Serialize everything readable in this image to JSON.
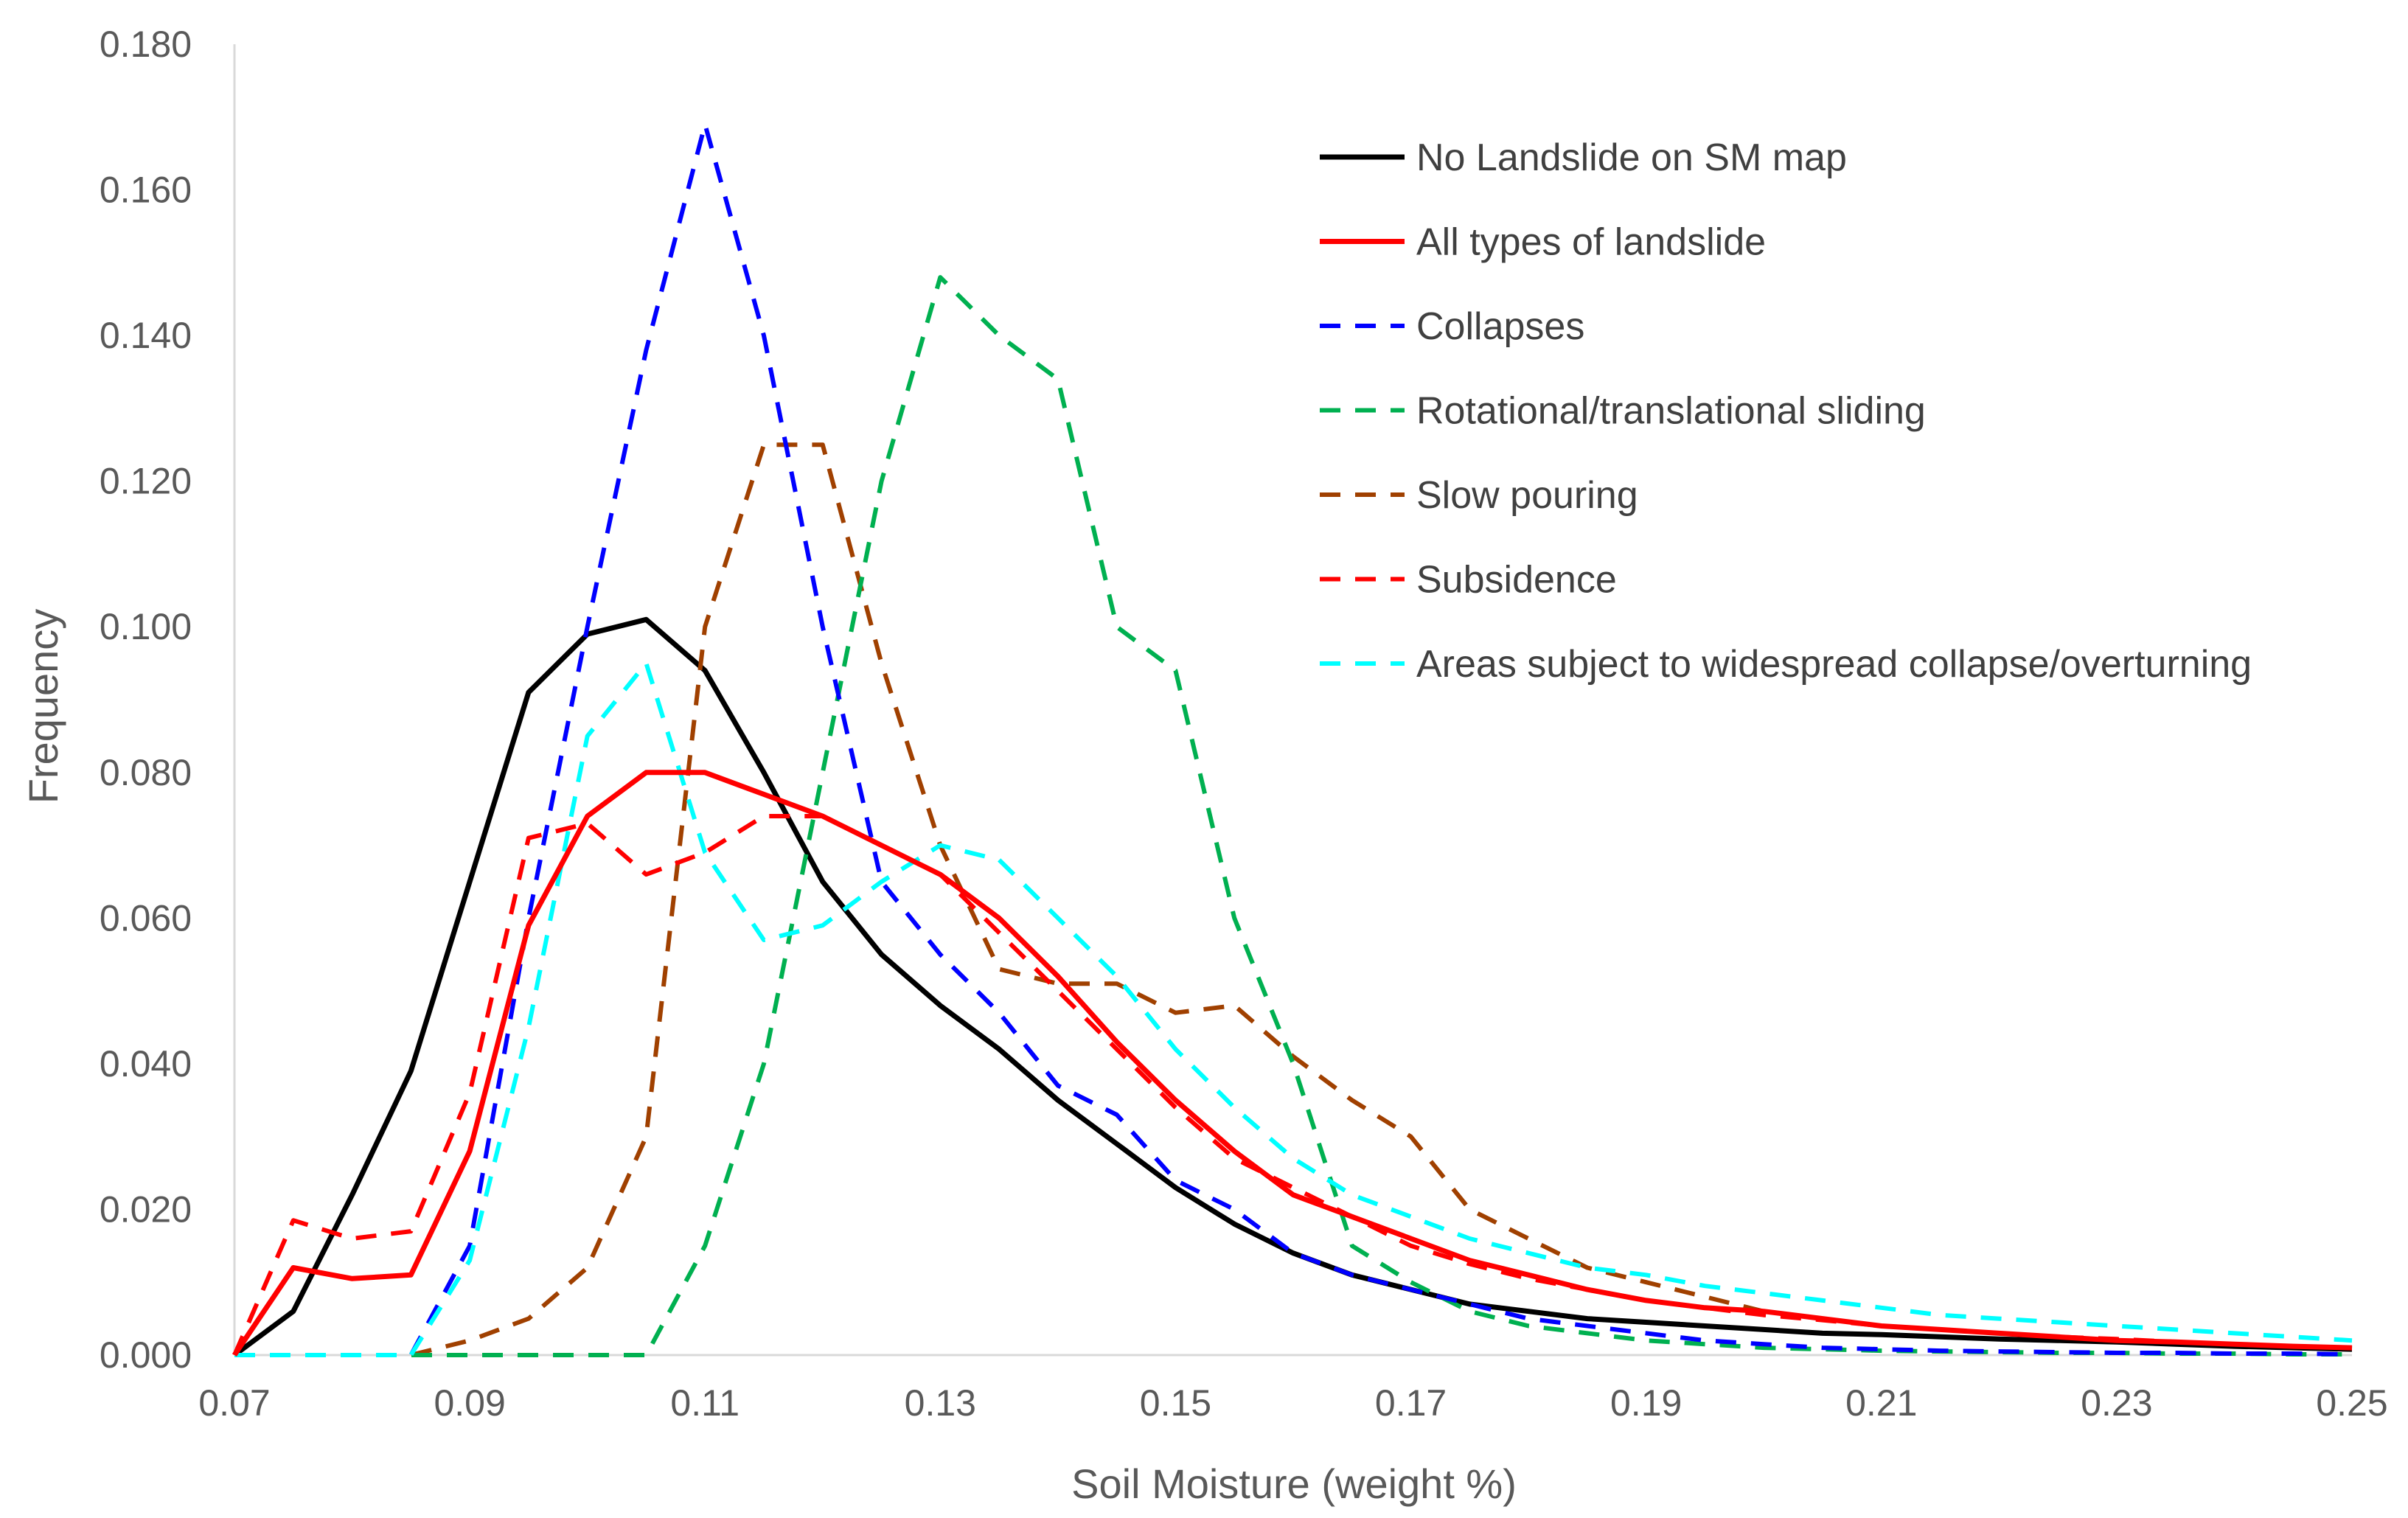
{
  "chart_data": {
    "type": "line",
    "title": "",
    "xlabel": "Soil Moisture (weight %)",
    "ylabel": "Frequency",
    "xlim": [
      0.07,
      0.25
    ],
    "ylim": [
      0,
      0.18
    ],
    "xticks": [
      "0.07",
      "0.09",
      "0.11",
      "0.13",
      "0.15",
      "0.17",
      "0.19",
      "0.21",
      "0.23",
      "0.25"
    ],
    "yticks": [
      "0.000",
      "0.020",
      "0.040",
      "0.060",
      "0.080",
      "0.100",
      "0.120",
      "0.140",
      "0.160",
      "0.180"
    ],
    "grid": false,
    "legend_position": "top-right",
    "x": [
      0.07,
      0.075,
      0.08,
      0.085,
      0.09,
      0.095,
      0.1,
      0.105,
      0.11,
      0.115,
      0.12,
      0.125,
      0.13,
      0.135,
      0.14,
      0.145,
      0.15,
      0.155,
      0.16,
      0.165,
      0.17,
      0.175,
      0.18,
      0.185,
      0.19,
      0.195,
      0.2,
      0.205,
      0.21,
      0.215,
      0.22,
      0.225,
      0.23,
      0.235,
      0.24,
      0.245,
      0.25
    ],
    "series": [
      {
        "name": "No Landslide on SM map",
        "color": "#000000",
        "dash": "solid",
        "values": [
          0.0,
          0.006,
          0.022,
          0.039,
          0.065,
          0.091,
          0.099,
          0.101,
          0.094,
          0.08,
          0.065,
          0.055,
          0.048,
          0.042,
          0.035,
          0.029,
          0.023,
          0.018,
          0.014,
          0.011,
          0.009,
          0.007,
          0.006,
          0.005,
          0.0045,
          0.004,
          0.0035,
          0.003,
          0.0028,
          0.0025,
          0.0022,
          0.002,
          0.0018,
          0.0015,
          0.0012,
          0.001,
          0.0008
        ]
      },
      {
        "name": "All types of landslide",
        "color": "#ff0000",
        "dash": "solid",
        "values": [
          0.0,
          0.012,
          0.0105,
          0.011,
          0.028,
          0.059,
          0.074,
          0.08,
          0.08,
          0.077,
          0.074,
          0.07,
          0.066,
          0.06,
          0.052,
          0.043,
          0.035,
          0.028,
          0.022,
          0.019,
          0.016,
          0.013,
          0.011,
          0.009,
          0.0075,
          0.0065,
          0.006,
          0.005,
          0.004,
          0.0035,
          0.003,
          0.0025,
          0.002,
          0.0018,
          0.0015,
          0.0012,
          0.001
        ]
      },
      {
        "name": "Collapses",
        "color": "#0000ff",
        "dash": "dashed",
        "values": [
          0.0,
          0.0,
          0.0,
          0.0,
          0.015,
          0.06,
          0.1,
          0.138,
          0.169,
          0.14,
          0.1,
          0.065,
          0.055,
          0.047,
          0.037,
          0.033,
          0.024,
          0.02,
          0.014,
          0.011,
          0.009,
          0.007,
          0.005,
          0.004,
          0.003,
          0.002,
          0.0015,
          0.001,
          0.0008,
          0.0006,
          0.0005,
          0.0004,
          0.0003,
          0.0003,
          0.0002,
          0.0002,
          0.0001
        ]
      },
      {
        "name": "Rotational/translational sliding",
        "color": "#00b050",
        "dash": "dashed",
        "values": [
          0.0,
          0.0,
          0.0,
          0.0,
          0.0,
          0.0,
          0.0,
          0.0,
          0.015,
          0.04,
          0.08,
          0.12,
          0.148,
          0.14,
          0.134,
          0.1,
          0.094,
          0.06,
          0.04,
          0.015,
          0.01,
          0.006,
          0.004,
          0.003,
          0.002,
          0.0015,
          0.001,
          0.0008,
          0.0006,
          0.0005,
          0.0004,
          0.0003,
          0.0003,
          0.0002,
          0.0002,
          0.0001,
          0.0001
        ]
      },
      {
        "name": "Slow pouring",
        "color": "#a04000",
        "dash": "dashed",
        "values": [
          0.0,
          0.0,
          0.0,
          0.0,
          0.002,
          0.005,
          0.012,
          0.03,
          0.1,
          0.125,
          0.125,
          0.095,
          0.07,
          0.053,
          0.051,
          0.051,
          0.047,
          0.048,
          0.041,
          0.035,
          0.03,
          0.02,
          0.016,
          0.012,
          0.01,
          0.008,
          0.006,
          0.005,
          0.004,
          0.0035,
          0.003,
          0.0025,
          0.002,
          0.0018,
          0.0015,
          0.0012,
          0.001
        ]
      },
      {
        "name": "Subsidence",
        "color": "#ff0000",
        "dash": "dashed",
        "values": [
          0.0,
          0.0185,
          0.016,
          0.017,
          0.036,
          0.071,
          0.073,
          0.066,
          0.069,
          0.074,
          0.074,
          0.07,
          0.066,
          0.058,
          0.05,
          0.042,
          0.034,
          0.027,
          0.023,
          0.019,
          0.015,
          0.0125,
          0.0105,
          0.009,
          0.0075,
          0.0065,
          0.0055,
          0.0048,
          0.004,
          0.0035,
          0.003,
          0.0025,
          0.0022,
          0.0018,
          0.0015,
          0.0012,
          0.001
        ]
      },
      {
        "name": "Areas subject to widespread collapse/overturning",
        "color": "#00ffff",
        "dash": "dashed",
        "values": [
          0.0,
          0.0,
          0.0,
          0.0,
          0.013,
          0.045,
          0.085,
          0.095,
          0.069,
          0.057,
          0.059,
          0.065,
          0.07,
          0.068,
          0.06,
          0.052,
          0.042,
          0.034,
          0.027,
          0.022,
          0.019,
          0.016,
          0.014,
          0.012,
          0.011,
          0.0095,
          0.0085,
          0.0075,
          0.0065,
          0.0055,
          0.005,
          0.0045,
          0.004,
          0.0035,
          0.003,
          0.0025,
          0.002
        ]
      }
    ]
  }
}
